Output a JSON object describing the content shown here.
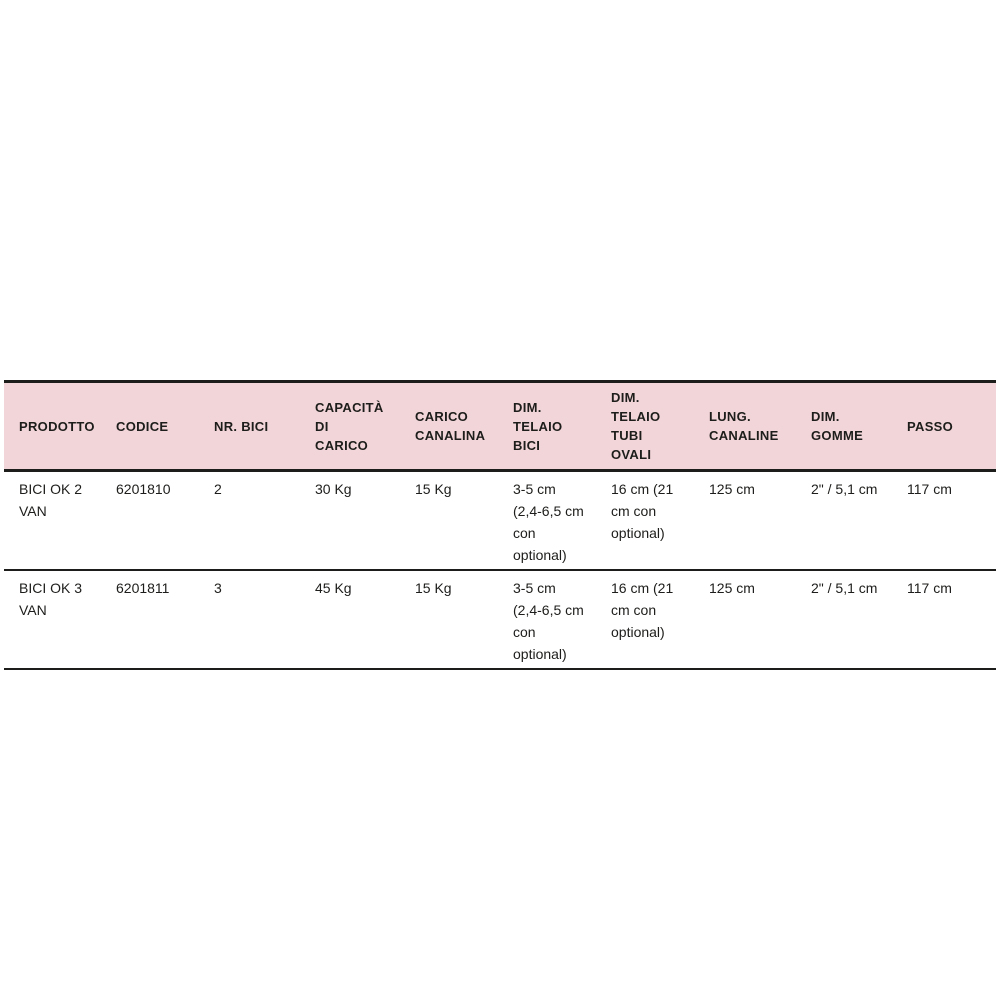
{
  "table": {
    "title": "product-specifications",
    "colors": {
      "header_bg": "#f2d5d8",
      "text": "#1d1d1b",
      "border": "#1d1d1b",
      "page_bg": "#ffffff"
    },
    "columns": [
      {
        "key": "prodotto",
        "label": "PRODOTTO"
      },
      {
        "key": "codice",
        "label": "CODICE"
      },
      {
        "key": "nr-bici",
        "label": "NR. BICI"
      },
      {
        "key": "capacita-carico",
        "label": "CAPACITÀ\nDI\nCARICO"
      },
      {
        "key": "carico-canalina",
        "label": "CARICO\nCANALINA"
      },
      {
        "key": "dim-telaio-bici",
        "label": "DIM.\nTELAIO\nBICI"
      },
      {
        "key": "dim-telaio-tubi-ovali",
        "label": "DIM.\nTELAIO\nTUBI\nOVALI"
      },
      {
        "key": "lung-canaline",
        "label": "LUNG.\nCANALINE"
      },
      {
        "key": "dim-gomme",
        "label": "DIM.\nGOMME"
      },
      {
        "key": "passo",
        "label": "PASSO"
      }
    ],
    "rows": [
      [
        "BICI OK 2 VAN",
        "6201810",
        "2",
        "30 Kg",
        "15 Kg",
        "3-5 cm (2,4-6,5 cm con optional)",
        "16 cm (21 cm con optional)",
        "125 cm",
        "2\" / 5,1 cm",
        "117 cm"
      ],
      [
        "BICI OK 3 VAN",
        "6201811",
        "3",
        "45 Kg",
        "15 Kg",
        "3-5 cm (2,4-6,5 cm con optional)",
        "16 cm (21 cm con optional)",
        "125 cm",
        "2\" / 5,1 cm",
        "117 cm"
      ]
    ]
  }
}
